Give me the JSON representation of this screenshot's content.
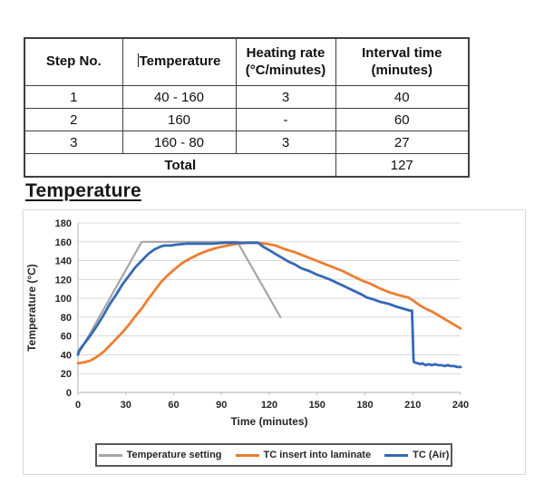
{
  "table": {
    "headers": [
      {
        "line1": "Step No.",
        "line2": ""
      },
      {
        "line1": "Temperature",
        "line2": ""
      },
      {
        "line1": "Heating rate",
        "line2": "(°C/minutes)"
      },
      {
        "line1": "Interval time",
        "line2": "(minutes)"
      }
    ],
    "rows": [
      [
        "1",
        "40 - 160",
        "3",
        "40"
      ],
      [
        "2",
        "160",
        "-",
        "60"
      ],
      [
        "3",
        "160 - 80",
        "3",
        "27"
      ]
    ],
    "total_label": "Total",
    "total_value": "127"
  },
  "section_heading": "Temperature",
  "chart_data": {
    "type": "line",
    "title": "",
    "xlabel": "Time (minutes)",
    "ylabel": "Temperature (°C)",
    "xlim": [
      0,
      240
    ],
    "ylim": [
      0,
      180
    ],
    "xticks": [
      0,
      30,
      60,
      90,
      120,
      150,
      180,
      210,
      240
    ],
    "yticks": [
      0,
      20,
      40,
      60,
      80,
      100,
      120,
      140,
      160,
      180
    ],
    "grid": "horizontal",
    "legend_position": "bottom",
    "colors": {
      "grid": "#d9d9d9",
      "axis": "#bfbfbf",
      "text": "#262626"
    },
    "series": [
      {
        "name": "Temperature setting",
        "color": "#a6a6a6",
        "width": 2.2,
        "points": [
          [
            0,
            40
          ],
          [
            40,
            160
          ],
          [
            100,
            160
          ],
          [
            127,
            80
          ]
        ]
      },
      {
        "name": "TC insert into laminate",
        "color": "#ed7d31",
        "width": 2.8,
        "points": [
          [
            0,
            31
          ],
          [
            4,
            32
          ],
          [
            8,
            34
          ],
          [
            12,
            38
          ],
          [
            16,
            43
          ],
          [
            20,
            50
          ],
          [
            24,
            57
          ],
          [
            28,
            64
          ],
          [
            32,
            72
          ],
          [
            36,
            81
          ],
          [
            40,
            89
          ],
          [
            44,
            99
          ],
          [
            48,
            108
          ],
          [
            52,
            117
          ],
          [
            56,
            124
          ],
          [
            60,
            130
          ],
          [
            65,
            137
          ],
          [
            70,
            142
          ],
          [
            76,
            147
          ],
          [
            82,
            151
          ],
          [
            88,
            154
          ],
          [
            94,
            156
          ],
          [
            100,
            158
          ],
          [
            106,
            159
          ],
          [
            112,
            159
          ],
          [
            118,
            158
          ],
          [
            124,
            156
          ],
          [
            130,
            152
          ],
          [
            136,
            149
          ],
          [
            142,
            145
          ],
          [
            148,
            141
          ],
          [
            154,
            137
          ],
          [
            160,
            133
          ],
          [
            166,
            129
          ],
          [
            172,
            124
          ],
          [
            178,
            119
          ],
          [
            184,
            115
          ],
          [
            190,
            110
          ],
          [
            196,
            106
          ],
          [
            202,
            103
          ],
          [
            207,
            101
          ],
          [
            210,
            98
          ],
          [
            214,
            93
          ],
          [
            218,
            89
          ],
          [
            222,
            86
          ],
          [
            226,
            82
          ],
          [
            230,
            78
          ],
          [
            235,
            73
          ],
          [
            240,
            68
          ]
        ]
      },
      {
        "name": "TC (Air)",
        "color": "#3568b8",
        "width": 2.8,
        "points": [
          [
            0,
            40
          ],
          [
            0.5,
            44
          ],
          [
            4,
            52
          ],
          [
            8,
            61
          ],
          [
            12,
            71
          ],
          [
            16,
            82
          ],
          [
            20,
            94
          ],
          [
            24,
            104
          ],
          [
            28,
            115
          ],
          [
            32,
            124
          ],
          [
            36,
            133
          ],
          [
            40,
            140
          ],
          [
            44,
            147
          ],
          [
            48,
            152
          ],
          [
            52,
            155
          ],
          [
            54,
            156
          ],
          [
            58,
            156
          ],
          [
            62,
            157
          ],
          [
            68,
            158
          ],
          [
            76,
            158
          ],
          [
            84,
            158
          ],
          [
            92,
            159
          ],
          [
            100,
            159
          ],
          [
            106,
            159
          ],
          [
            110,
            159
          ],
          [
            113,
            159
          ],
          [
            116,
            155
          ],
          [
            120,
            151
          ],
          [
            124,
            147
          ],
          [
            128,
            143
          ],
          [
            132,
            139
          ],
          [
            136,
            136
          ],
          [
            140,
            132
          ],
          [
            145,
            129
          ],
          [
            150,
            125
          ],
          [
            155,
            122
          ],
          [
            158,
            120
          ],
          [
            163,
            116
          ],
          [
            168,
            112
          ],
          [
            173,
            108
          ],
          [
            178,
            104
          ],
          [
            181,
            101
          ],
          [
            185,
            99
          ],
          [
            190,
            96
          ],
          [
            195,
            94
          ],
          [
            200,
            91
          ],
          [
            204,
            89
          ],
          [
            208,
            87
          ],
          [
            209.5,
            87
          ],
          [
            210,
            60
          ],
          [
            210.5,
            34
          ],
          [
            211,
            32
          ],
          [
            213,
            31
          ],
          [
            215,
            30
          ],
          [
            216,
            31
          ],
          [
            218,
            29
          ],
          [
            220,
            30
          ],
          [
            222,
            29
          ],
          [
            224,
            30
          ],
          [
            226,
            29
          ],
          [
            228,
            29
          ],
          [
            230,
            28
          ],
          [
            232,
            29
          ],
          [
            234,
            28
          ],
          [
            236,
            28
          ],
          [
            238,
            27
          ],
          [
            240,
            27
          ]
        ]
      }
    ]
  }
}
